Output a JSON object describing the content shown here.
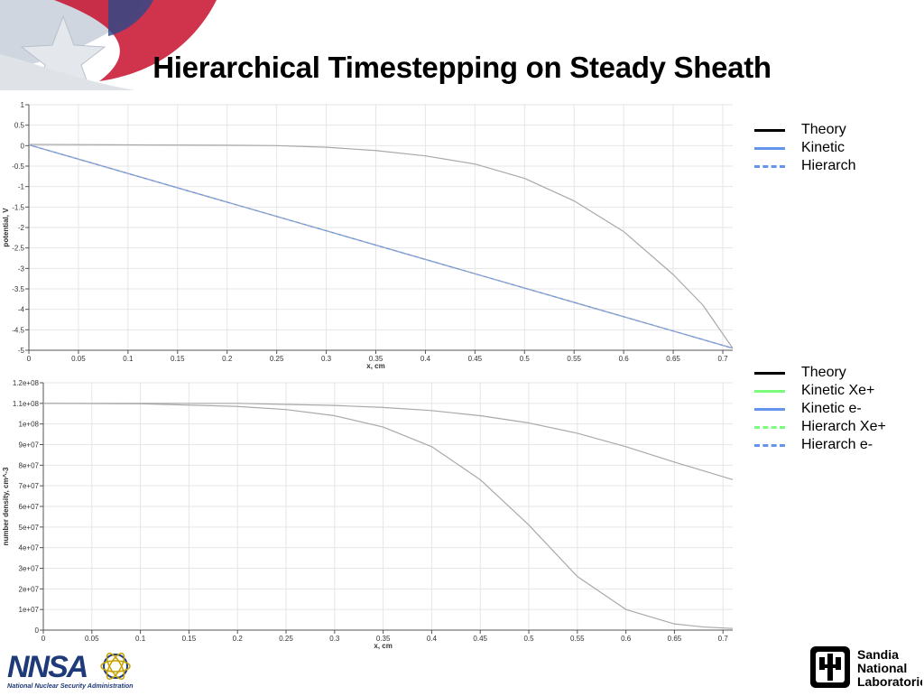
{
  "slide": {
    "title": "Hierarchical Timestepping on Steady Sheath"
  },
  "colors": {
    "theory": "#000000",
    "kinetic": "#6495ED",
    "kinetic_xe": "#7CFC7C",
    "gridline": "#e6e6e6",
    "curve": "#a9a9a9"
  },
  "logos": {
    "nnsa": {
      "name": "NNSA",
      "caption": "National Nuclear Security Administration"
    },
    "sandia": {
      "line1": "Sandia",
      "line2": "National",
      "line3": "Laboratories"
    }
  },
  "chart_data": [
    {
      "type": "line",
      "title": "",
      "xlabel": "x, cm",
      "ylabel": "potential, V",
      "xlim": [
        0,
        0.71
      ],
      "ylim": [
        -5,
        1
      ],
      "xticks": [
        "0",
        "0.05",
        "0.1",
        "0.15",
        "0.2",
        "0.25",
        "0.3",
        "0.35",
        "0.4",
        "0.45",
        "0.5",
        "0.55",
        "0.6",
        "0.65",
        "0.7"
      ],
      "yticks": [
        "1",
        "0.5",
        "0",
        "-0.5",
        "-1",
        "-1.5",
        "-2",
        "-2.5",
        "-3",
        "-3.5",
        "-4",
        "-4.5",
        "-5"
      ],
      "grid": true,
      "legend": {
        "position": "right",
        "entries": [
          {
            "label": "Theory",
            "style": "solid",
            "color_key": "theory"
          },
          {
            "label": "Kinetic",
            "style": "solid",
            "color_key": "kinetic"
          },
          {
            "label": "Hierarch",
            "style": "dashed",
            "color_key": "kinetic"
          }
        ]
      },
      "series": [
        {
          "style": "solid",
          "color_key": "curve",
          "x": [
            0,
            0.1,
            0.2,
            0.25,
            0.3,
            0.35,
            0.4,
            0.45,
            0.5,
            0.55,
            0.6,
            0.65,
            0.68,
            0.71
          ],
          "y": [
            0.03,
            0.02,
            0.01,
            0.0,
            -0.04,
            -0.12,
            -0.25,
            -0.45,
            -0.8,
            -1.35,
            -2.1,
            -3.15,
            -3.9,
            -4.95
          ]
        },
        {
          "style": "solid",
          "color_key": "kinetic",
          "x": [
            0,
            0.71
          ],
          "y": [
            0.02,
            -4.95
          ]
        },
        {
          "style": "dashed",
          "color_key": "curve",
          "x": [
            0,
            0.71
          ],
          "y": [
            0.02,
            -4.95
          ]
        }
      ]
    },
    {
      "type": "line",
      "title": "",
      "xlabel": "x, cm",
      "ylabel": "number density, cm^-3",
      "xlim": [
        0,
        0.71
      ],
      "ylim": [
        0,
        120000000
      ],
      "xticks": [
        "0",
        "0.05",
        "0.1",
        "0.15",
        "0.2",
        "0.25",
        "0.3",
        "0.35",
        "0.4",
        "0.45",
        "0.5",
        "0.55",
        "0.6",
        "0.65",
        "0.7"
      ],
      "yticks": [
        "1.2e+08",
        "1.1e+08",
        "1e+08",
        "9e+07",
        "8e+07",
        "7e+07",
        "6e+07",
        "5e+07",
        "4e+07",
        "3e+07",
        "2e+07",
        "1e+07",
        "0"
      ],
      "grid": true,
      "legend": {
        "position": "right",
        "entries": [
          {
            "label": "Theory",
            "style": "solid",
            "color_key": "theory"
          },
          {
            "label": "Kinetic Xe+",
            "style": "solid",
            "color_key": "kinetic_xe"
          },
          {
            "label": "Kinetic e-",
            "style": "solid",
            "color_key": "kinetic"
          },
          {
            "label": "Hierarch Xe+",
            "style": "dashed",
            "color_key": "kinetic_xe"
          },
          {
            "label": "Hierarch e-",
            "style": "dashed",
            "color_key": "kinetic"
          }
        ]
      },
      "series": [
        {
          "style": "solid",
          "color_key": "curve",
          "x": [
            0,
            0.1,
            0.2,
            0.25,
            0.3,
            0.35,
            0.4,
            0.45,
            0.5,
            0.55,
            0.6,
            0.65,
            0.71
          ],
          "y": [
            110000000,
            110000000,
            110000000,
            109500000,
            109000000,
            108000000,
            106500000,
            104000000,
            100500000,
            95500000,
            89000000,
            81500000,
            73000000
          ]
        },
        {
          "style": "solid",
          "color_key": "curve",
          "x": [
            0,
            0.1,
            0.2,
            0.25,
            0.3,
            0.35,
            0.4,
            0.45,
            0.5,
            0.55,
            0.6,
            0.65,
            0.68,
            0.71
          ],
          "y": [
            110000000,
            109800000,
            108500000,
            107000000,
            104000000,
            98500000,
            89000000,
            73000000,
            51000000,
            26000000,
            10000000,
            3000000,
            1500000,
            800000
          ]
        }
      ]
    }
  ]
}
